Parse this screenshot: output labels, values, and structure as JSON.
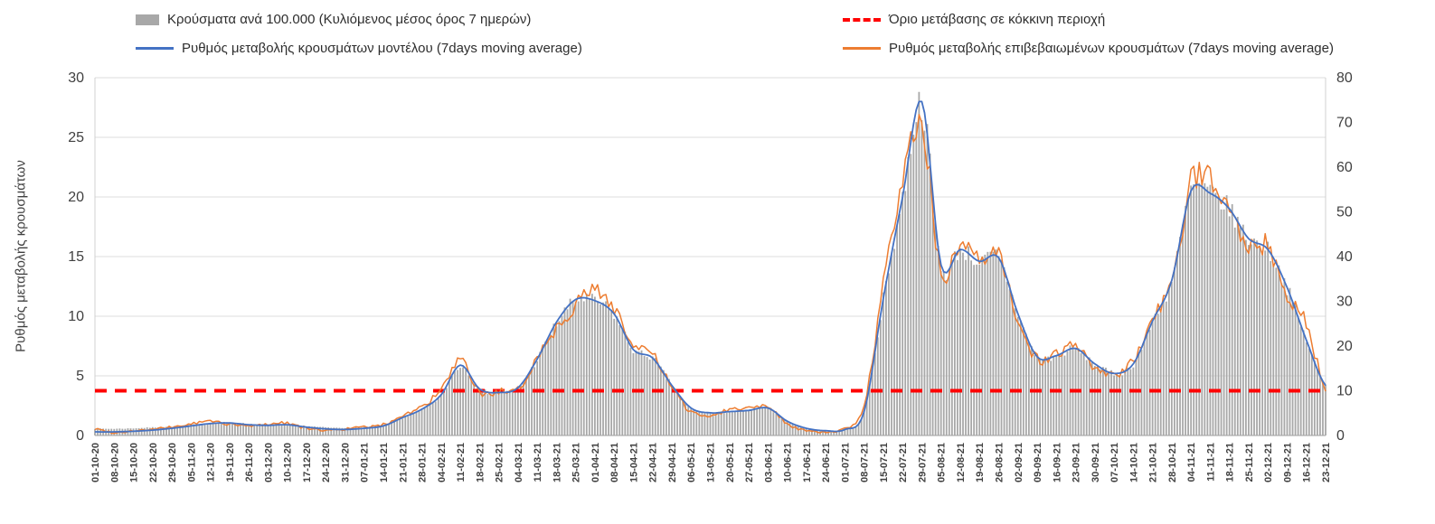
{
  "legend": {
    "bars_label": "Κρούσματα ανά 100.000 (Κυλιόμενος μέσος όρος 7 ημερών)",
    "threshold_label": "Όριο μετάβασης σε κόκκινη περιοχή",
    "model_label": "Ρυθμός μεταβολής κρουσμάτων μοντέλου (7days moving average)",
    "confirmed_label": "Ρυθμός μεταβολής επιβεβαιωμένων κρουσμάτων (7days moving average)"
  },
  "y_axis_title": "Ρυθμός μεταβολής κρουσμάτων",
  "chart_data": {
    "type": "combo",
    "note": "values estimated from plot at weekly x-axis tick positions",
    "categories": [
      "01-10-20",
      "08-10-20",
      "15-10-20",
      "22-10-20",
      "29-10-20",
      "05-11-20",
      "12-11-20",
      "19-11-20",
      "26-11-20",
      "03-12-20",
      "10-12-20",
      "17-12-20",
      "24-12-20",
      "31-12-20",
      "07-01-21",
      "14-01-21",
      "21-01-21",
      "28-01-21",
      "04-02-21",
      "11-02-21",
      "18-02-21",
      "25-02-21",
      "04-03-21",
      "11-03-21",
      "18-03-21",
      "25-03-21",
      "01-04-21",
      "08-04-21",
      "15-04-21",
      "22-04-21",
      "29-04-21",
      "06-05-21",
      "13-05-21",
      "20-05-21",
      "27-05-21",
      "03-06-21",
      "10-06-21",
      "17-06-21",
      "24-06-21",
      "01-07-21",
      "08-07-21",
      "15-07-21",
      "22-07-21",
      "29-07-21",
      "05-08-21",
      "12-08-21",
      "19-08-21",
      "26-08-21",
      "02-09-21",
      "09-09-21",
      "16-09-21",
      "23-09-21",
      "30-09-21",
      "07-10-21",
      "14-10-21",
      "21-10-21",
      "28-10-21",
      "04-11-21",
      "11-11-21",
      "18-11-21",
      "25-11-21",
      "02-12-21",
      "09-12-21",
      "16-12-21",
      "23-12-21"
    ],
    "series": [
      {
        "name": "Κρούσματα ανά 100.000 (Κυλιόμενος μέσος όρος 7 ημερών)",
        "type": "bar",
        "axis": "right",
        "color": "#a8a8a8",
        "values": [
          1.5,
          1.5,
          1.6,
          1.8,
          2.0,
          2.4,
          2.8,
          2.9,
          2.6,
          2.4,
          2.4,
          2.1,
          1.8,
          1.7,
          1.9,
          2.3,
          3.9,
          5.8,
          9.0,
          15.5,
          10.4,
          9.7,
          10.6,
          17.0,
          25.0,
          30.2,
          30.0,
          27.0,
          19.2,
          17.3,
          11.2,
          6.1,
          5.1,
          5.3,
          5.6,
          6.1,
          3.2,
          1.6,
          1.1,
          1.3,
          5.3,
          30.5,
          53.0,
          74.0,
          38.0,
          41.5,
          38.8,
          39.6,
          27.2,
          17.6,
          17.8,
          19.4,
          16.0,
          13.9,
          16.0,
          25.5,
          34.5,
          54.5,
          54.0,
          50.5,
          44.0,
          41.5,
          33.0,
          21.3,
          11.2
        ]
      },
      {
        "name": "Ρυθμός μεταβολής κρουσμάτων μοντέλου (7days moving average)",
        "type": "line",
        "axis": "left",
        "color": "#4472c4",
        "values": [
          0.3,
          0.3,
          0.35,
          0.45,
          0.6,
          0.8,
          1.0,
          1.05,
          0.9,
          0.85,
          0.9,
          0.7,
          0.55,
          0.5,
          0.6,
          0.8,
          1.5,
          2.2,
          3.4,
          5.9,
          3.9,
          3.6,
          4.0,
          6.4,
          9.5,
          11.4,
          11.3,
          10.2,
          7.2,
          6.5,
          4.2,
          2.3,
          1.9,
          2.0,
          2.1,
          2.3,
          1.2,
          0.6,
          0.4,
          0.5,
          2.0,
          11.5,
          20.0,
          28.0,
          14.3,
          15.6,
          14.6,
          14.9,
          10.2,
          6.6,
          6.7,
          7.3,
          6.0,
          5.2,
          6.0,
          9.6,
          13.0,
          20.5,
          20.3,
          19.0,
          16.5,
          15.6,
          12.4,
          8.0,
          4.2
        ]
      },
      {
        "name": "Ρυθμός μεταβολής επιβεβαιωμένων κρουσμάτων (7days moving average)",
        "type": "line",
        "axis": "left",
        "color": "#ed7d31",
        "values": [
          0.55,
          0.25,
          0.4,
          0.5,
          0.7,
          0.95,
          1.2,
          0.95,
          0.8,
          0.95,
          1.05,
          0.6,
          0.45,
          0.55,
          0.7,
          0.9,
          1.7,
          2.4,
          3.8,
          6.2,
          3.6,
          3.7,
          3.8,
          6.6,
          9.0,
          11.0,
          12.1,
          10.8,
          7.5,
          6.8,
          4.0,
          2.0,
          1.7,
          2.2,
          2.3,
          2.5,
          1.0,
          0.4,
          0.3,
          0.6,
          2.5,
          12.5,
          21.0,
          26.5,
          13.5,
          15.9,
          14.4,
          15.0,
          9.8,
          6.4,
          6.9,
          7.4,
          5.7,
          5.0,
          6.3,
          10.0,
          12.5,
          21.0,
          21.8,
          19.5,
          16.0,
          15.8,
          11.8,
          9.3,
          4.0
        ]
      }
    ],
    "threshold": {
      "name": "Όριο μετάβασης σε κόκκινη περιοχή",
      "axis": "left",
      "value": 3.75,
      "color": "#ff0000",
      "style": "dashed"
    },
    "left_axis": {
      "min": 0,
      "max": 30,
      "ticks": [
        0,
        5,
        10,
        15,
        20,
        25,
        30
      ],
      "title": "Ρυθμός μεταβολής κρουσμάτων"
    },
    "right_axis": {
      "min": 0,
      "max": 80,
      "ticks": [
        0,
        10,
        20,
        30,
        40,
        50,
        60,
        70,
        80
      ]
    },
    "grid": true,
    "legend_position": "top"
  }
}
